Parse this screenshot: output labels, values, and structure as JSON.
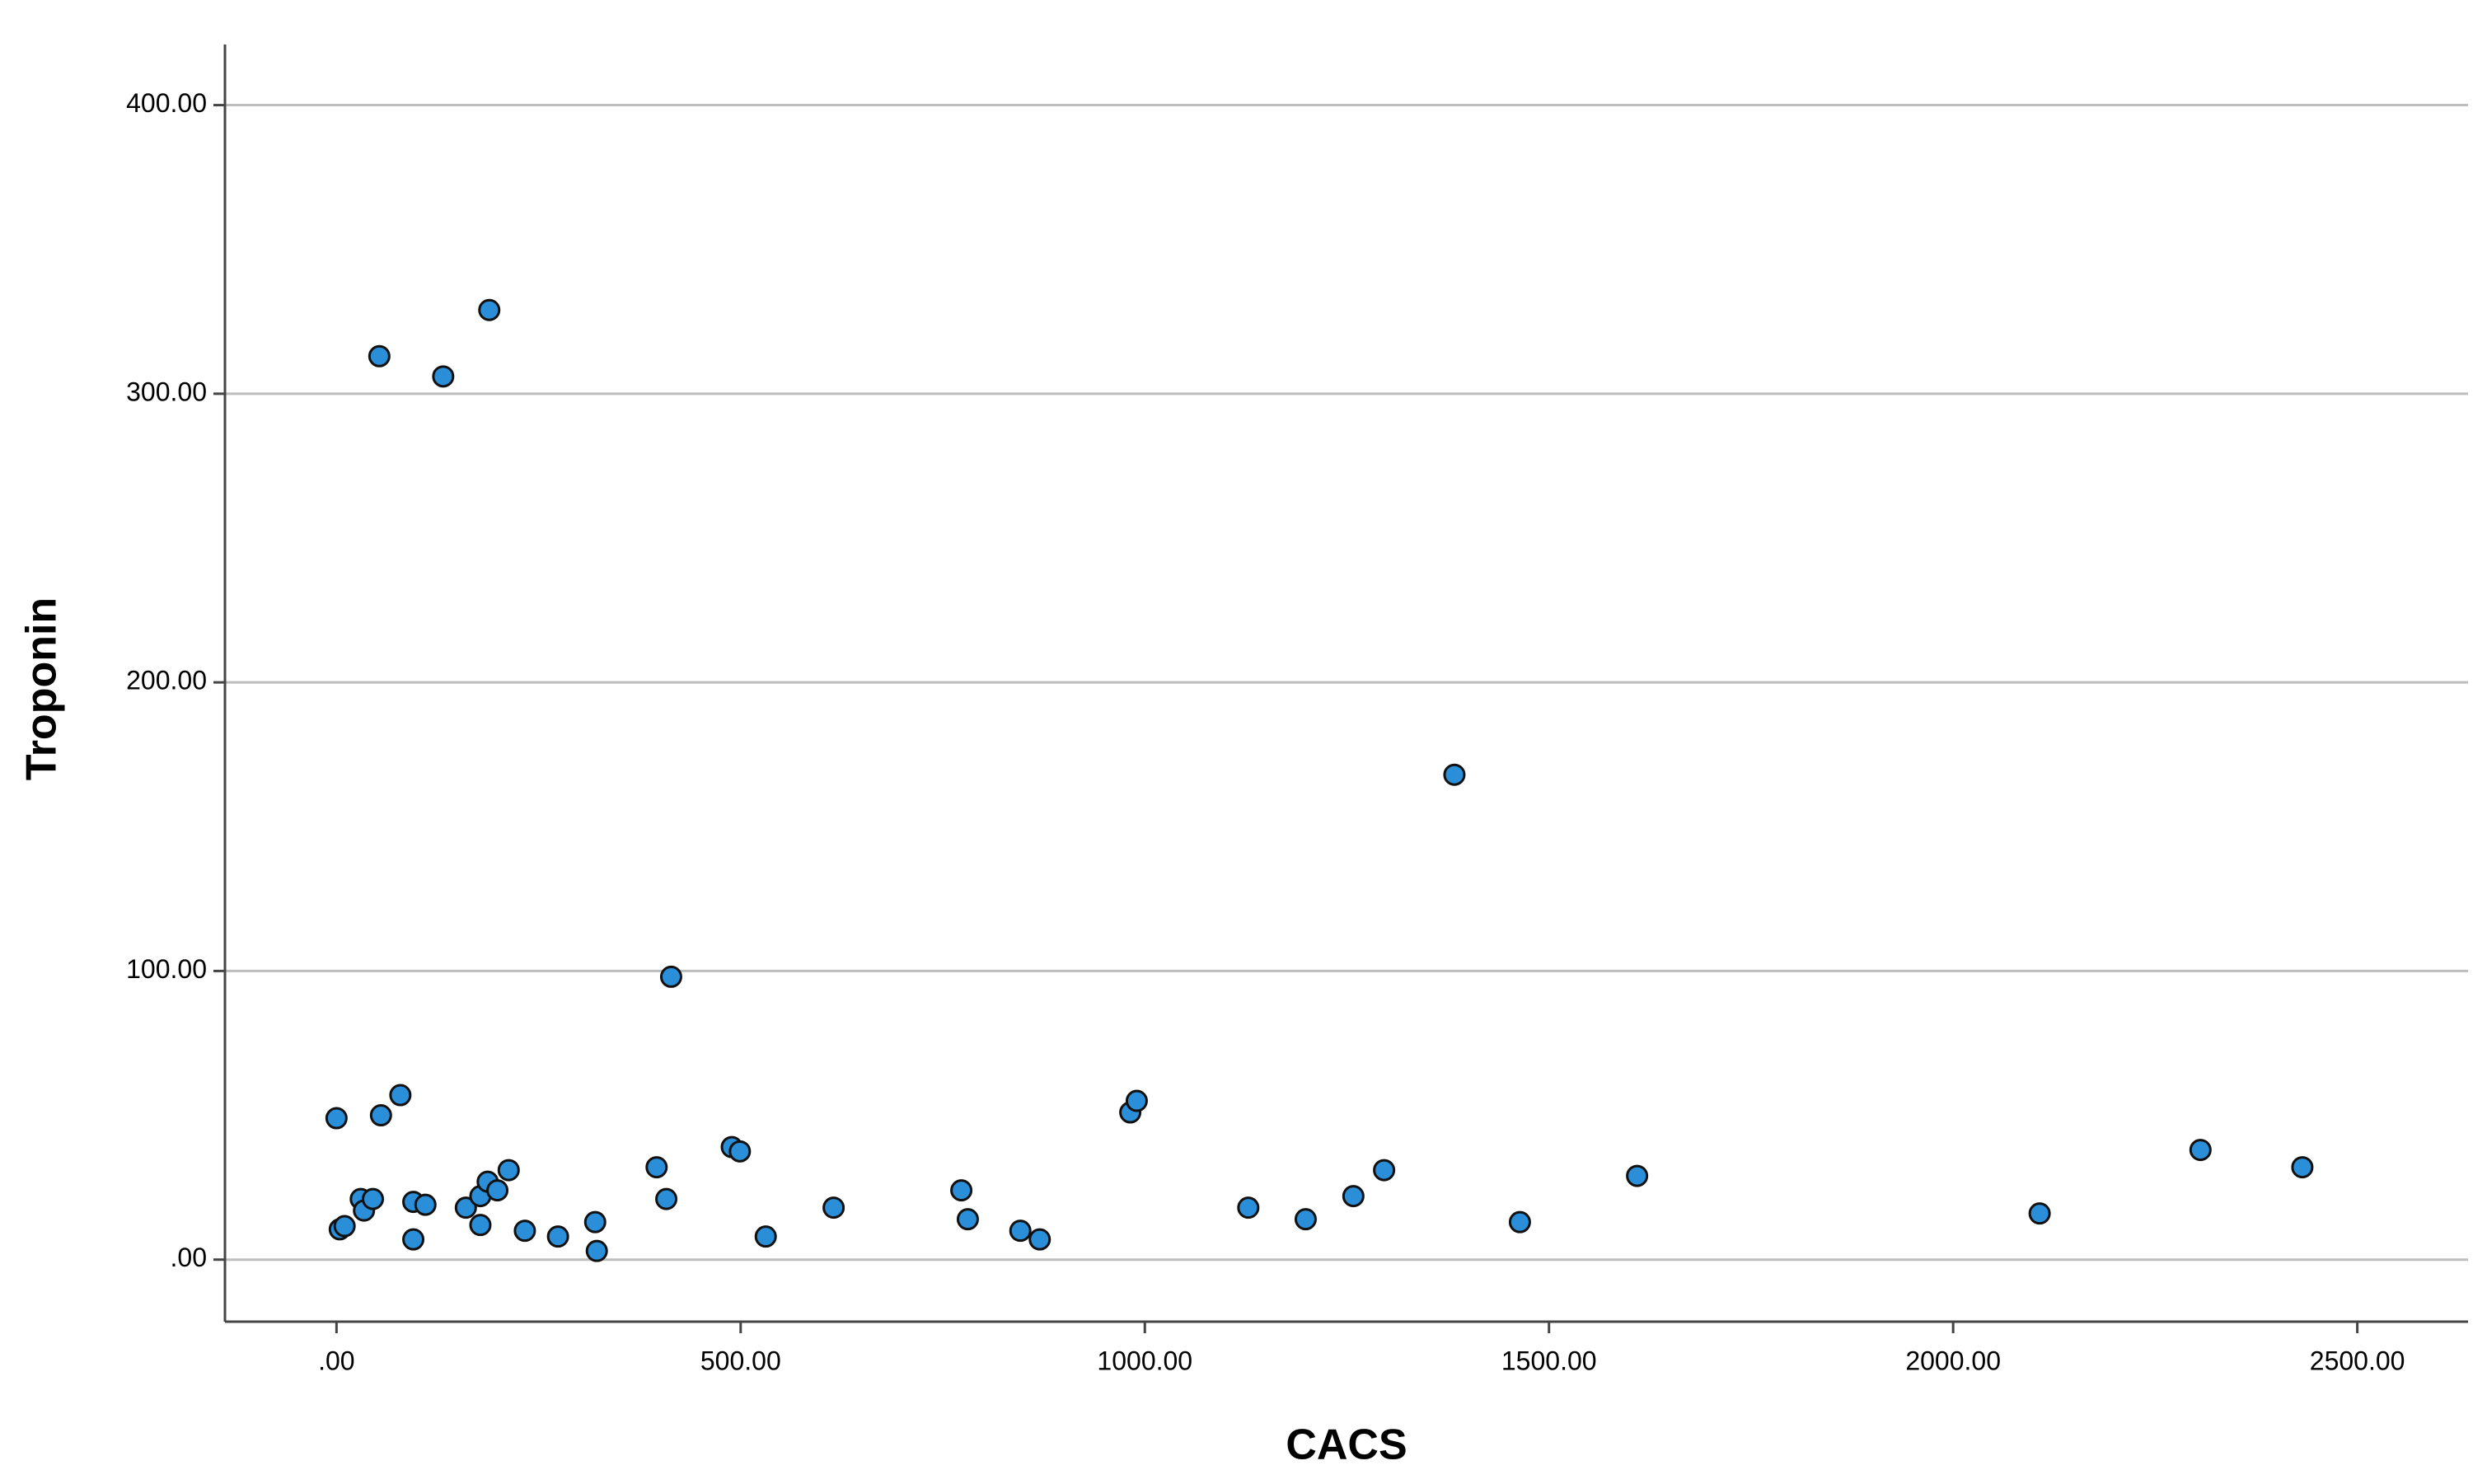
{
  "chart_data": {
    "type": "scatter",
    "x_label": "CACS",
    "y_label": "Troponin",
    "x": [
      0,
      53,
      132,
      189,
      1383,
      414,
      79,
      55,
      4,
      10,
      30,
      34,
      45,
      95,
      110,
      95,
      160,
      178,
      187,
      199,
      213,
      178,
      233,
      274,
      320,
      322,
      396,
      408,
      489,
      499,
      531,
      615,
      773,
      781,
      846,
      870,
      982,
      990,
      1128,
      1199,
      1258,
      1296,
      1464,
      1609,
      2107,
      2306,
      2432
    ],
    "values": [
      49,
      313,
      306,
      329,
      168,
      98,
      57,
      50,
      10.5,
      11.6,
      21,
      17,
      21,
      20,
      19,
      7,
      18,
      22,
      27,
      24,
      31,
      12,
      10,
      8,
      13,
      3,
      32,
      21,
      39,
      37.5,
      8,
      18,
      24,
      14,
      10,
      7,
      51,
      55,
      18,
      14,
      22,
      31,
      13,
      29,
      16,
      38,
      32
    ],
    "color": "#2a8fd8",
    "xlim": [
      -138,
      2637
    ],
    "ylim": [
      -21.5,
      421
    ],
    "xticks": [
      {
        "value": 0,
        "label": ".00"
      },
      {
        "value": 500,
        "label": "500.00"
      },
      {
        "value": 1000,
        "label": "1000.00"
      },
      {
        "value": 1500,
        "label": "1500.00"
      },
      {
        "value": 2000,
        "label": "2000.00"
      },
      {
        "value": 2500,
        "label": "2500.00"
      }
    ],
    "yticks": [
      {
        "value": 0,
        "label": ".00"
      },
      {
        "value": 100,
        "label": "100.00"
      },
      {
        "value": 200,
        "label": "200.00"
      },
      {
        "value": 300,
        "label": "300.00"
      },
      {
        "value": 400,
        "label": "400.00"
      }
    ],
    "grid": true
  }
}
